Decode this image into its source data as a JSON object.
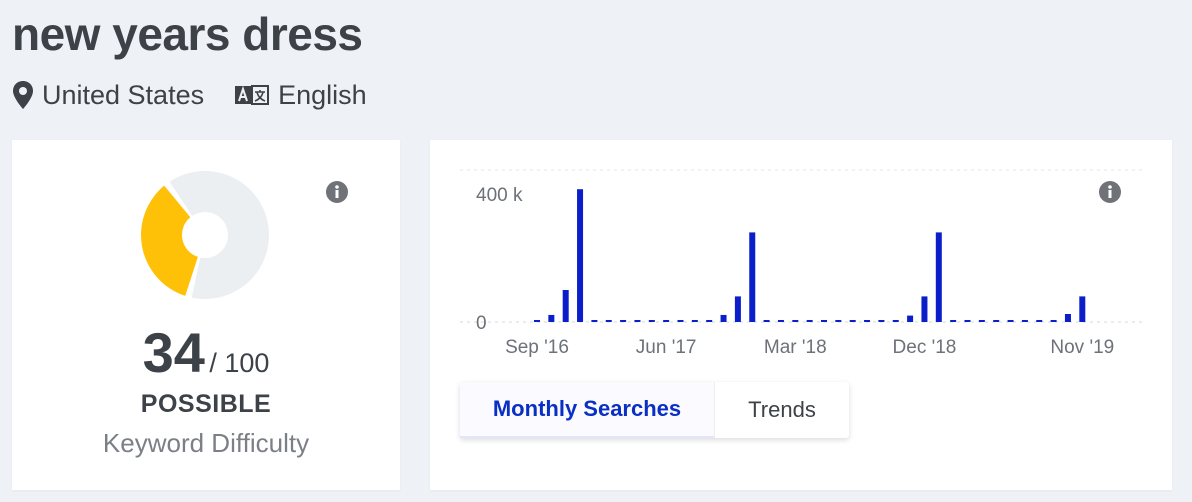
{
  "header": {
    "keyword": "new years dress",
    "location": "United States",
    "language": "English"
  },
  "difficulty": {
    "score": "34",
    "max": "/ 100",
    "label": "POSSIBLE",
    "caption": "Keyword Difficulty",
    "level": 0.34,
    "colors": {
      "filled": "#ffc107",
      "empty": "#eceff2"
    }
  },
  "chart_data": {
    "type": "bar",
    "color": "#0a1fc9",
    "y_ticks": [
      "400 k",
      "0"
    ],
    "ylim": [
      0,
      400000
    ],
    "x_tick_labels": [
      "Sep '16",
      "Jun '17",
      "Mar '18",
      "Dec '18",
      "Nov '19"
    ],
    "categories": [
      "Sep '16",
      "Oct '16",
      "Nov '16",
      "Dec '16",
      "Jan '17",
      "Feb '17",
      "Mar '17",
      "Apr '17",
      "May '17",
      "Jun '17",
      "Jul '17",
      "Aug '17",
      "Sep '17",
      "Oct '17",
      "Nov '17",
      "Dec '17",
      "Jan '18",
      "Feb '18",
      "Mar '18",
      "Apr '18",
      "May '18",
      "Jun '18",
      "Jul '18",
      "Aug '18",
      "Sep '18",
      "Oct '18",
      "Nov '18",
      "Dec '18",
      "Jan '19",
      "Feb '19",
      "Mar '19",
      "Apr '19",
      "May '19",
      "Jun '19",
      "Jul '19",
      "Aug '19",
      "Sep '19",
      "Oct '19",
      "Nov '19"
    ],
    "values": [
      6000,
      22000,
      100000,
      415000,
      6000,
      1500,
      1500,
      1500,
      1500,
      1500,
      2000,
      3000,
      6000,
      22000,
      80000,
      280000,
      6000,
      1500,
      1500,
      1500,
      1500,
      1500,
      1500,
      2000,
      3000,
      6000,
      20000,
      80000,
      280000,
      6000,
      1500,
      1500,
      1500,
      1500,
      1500,
      2000,
      5000,
      25000,
      80000
    ]
  },
  "tabs": [
    {
      "label": "Monthly Searches",
      "active": true
    },
    {
      "label": "Trends",
      "active": false
    }
  ]
}
